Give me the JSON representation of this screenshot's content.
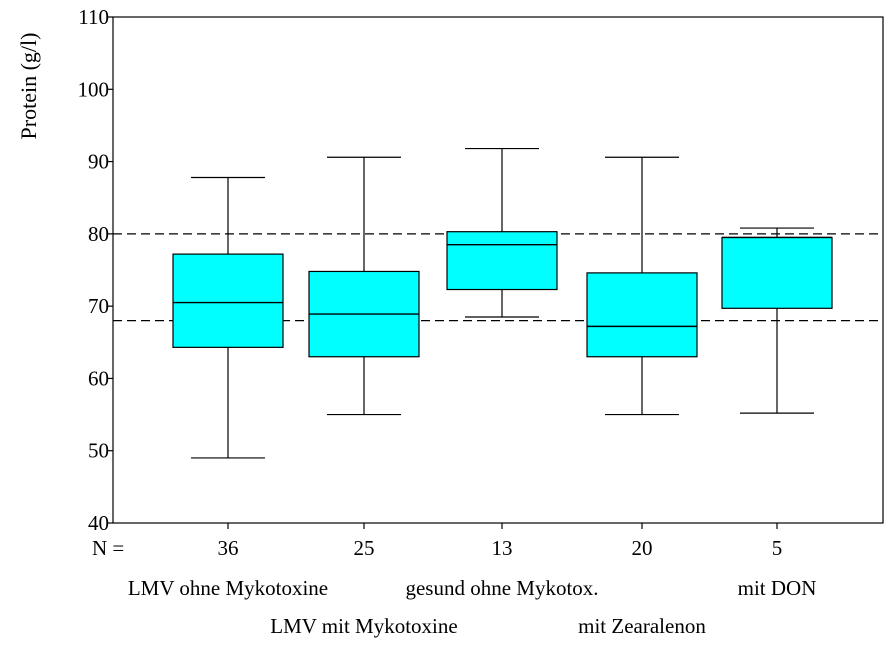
{
  "chart_data": {
    "type": "boxplot",
    "ylabel": "Protein (g/l)",
    "ylim": [
      40,
      110
    ],
    "yticks": [
      40,
      50,
      60,
      70,
      80,
      90,
      100,
      110
    ],
    "n_label": "N =",
    "reference_lines": [
      68,
      80
    ],
    "box_color": "#00FFFF",
    "categories": [
      {
        "label": "LMV ohne Mykotoxine",
        "n": "36",
        "min": 49,
        "q1": 64.3,
        "median": 70.5,
        "q3": 77.2,
        "max": 87.8
      },
      {
        "label": "LMV mit Mykotoxine",
        "n": "25",
        "min": 55,
        "q1": 63,
        "median": 68.9,
        "q3": 74.8,
        "max": 90.6
      },
      {
        "label": "gesund ohne Mykotox.",
        "n": "13",
        "min": 68.5,
        "q1": 72.3,
        "median": 78.5,
        "q3": 80.3,
        "max": 91.8
      },
      {
        "label": "mit Zearalenon",
        "n": "20",
        "min": 55,
        "q1": 63,
        "median": 67.2,
        "q3": 74.6,
        "max": 90.6
      },
      {
        "label": "mit DON",
        "n": "5",
        "min": 55.2,
        "q1": 69.7,
        "median": 79.5,
        "q3": 79.5,
        "max": 80.8
      }
    ]
  }
}
